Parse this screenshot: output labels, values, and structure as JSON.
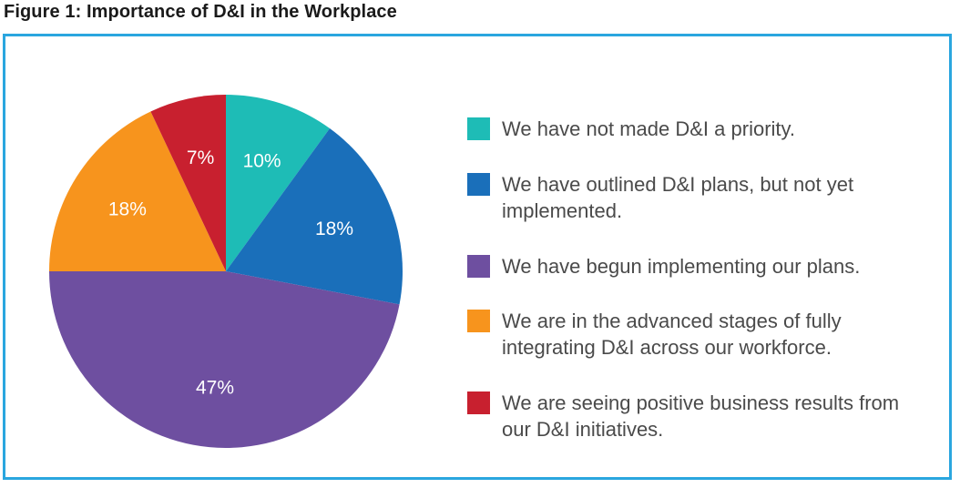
{
  "title": "Figure 1: Importance of D&I in the Workplace",
  "chart_data": {
    "type": "pie",
    "categories": [
      "We have not made D&I a priority.",
      "We have outlined D&I plans, but not yet implemented.",
      "We have begun implementing our plans.",
      "We are in the advanced stages of fully integrating D&I across our workforce.",
      "We are seeing positive business results from our D&I initiatives."
    ],
    "values": [
      10,
      18,
      47,
      18,
      7
    ],
    "value_labels": [
      "10%",
      "18%",
      "47%",
      "18%",
      "7%"
    ],
    "colors": [
      "#1ebcb6",
      "#1a6fba",
      "#6e4fa0",
      "#f7941d",
      "#c8202f"
    ],
    "start_angle": "12 o'clock",
    "direction": "clockwise",
    "legend_position": "right"
  }
}
